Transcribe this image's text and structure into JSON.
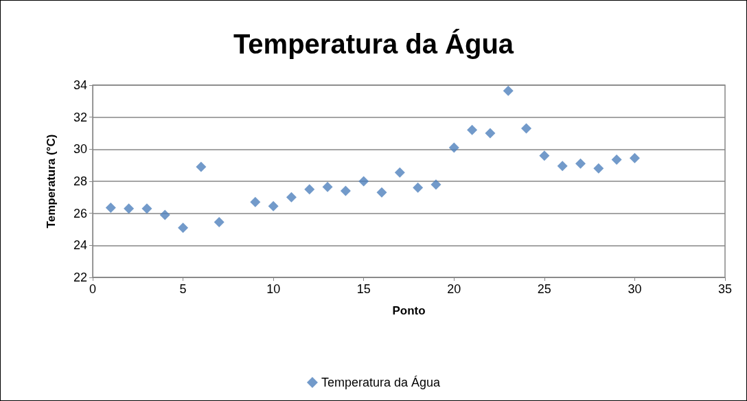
{
  "chart_data": {
    "type": "scatter",
    "title": "Temperatura da Água",
    "xlabel": "Ponto",
    "ylabel": "Temperatura (°C)",
    "series": [
      {
        "name": "Temperatura da Água",
        "color": "#4f81bd",
        "x": [
          1,
          2,
          3,
          4,
          5,
          6,
          7,
          9,
          10,
          11,
          12,
          13,
          14,
          15,
          16,
          17,
          18,
          19,
          20,
          21,
          22,
          23,
          24,
          25,
          26,
          27,
          28,
          29,
          30
        ],
        "values": [
          26.35,
          26.3,
          26.3,
          25.9,
          25.1,
          28.9,
          25.45,
          26.7,
          26.45,
          27.0,
          27.5,
          27.65,
          27.4,
          28.0,
          27.3,
          28.55,
          27.6,
          27.8,
          30.1,
          31.2,
          31.0,
          33.65,
          31.3,
          29.6,
          28.95,
          29.1,
          28.8,
          29.35,
          29.45
        ]
      }
    ],
    "xlim": [
      0,
      35
    ],
    "xticks": [
      0,
      5,
      10,
      15,
      20,
      25,
      30,
      35
    ],
    "ylim": [
      22,
      34
    ],
    "yticks": [
      22,
      24,
      26,
      28,
      30,
      32,
      34
    ],
    "grid": "y",
    "legend": "bottom",
    "marker": "diamond"
  }
}
